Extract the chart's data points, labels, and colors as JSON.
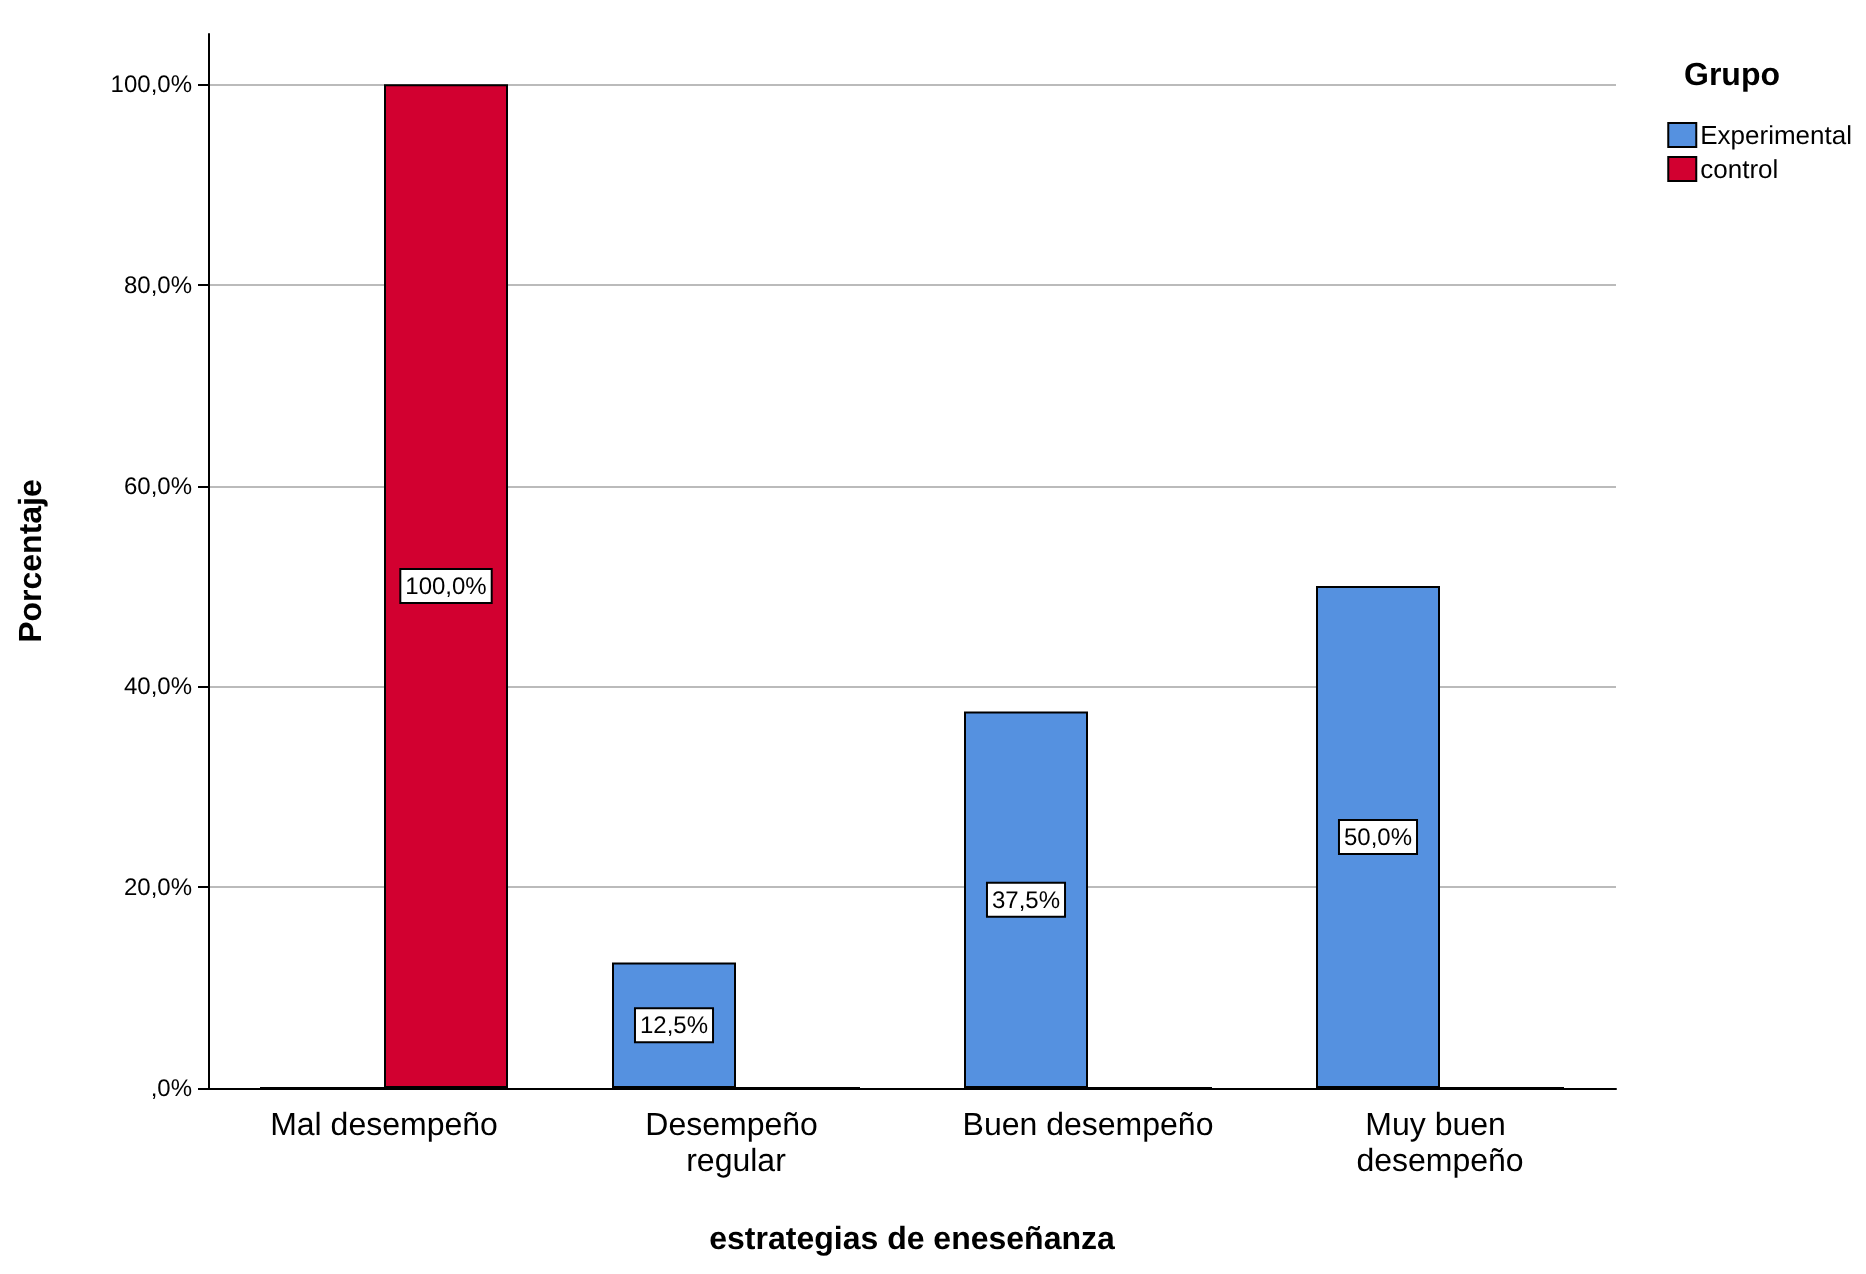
{
  "chart_data": {
    "type": "bar",
    "xlabel": "estrategias de eneseñanza",
    "ylabel": "Porcentaje",
    "legend_title": "Grupo",
    "categories": [
      "Mal desempeño",
      "Desempeño regular",
      "Buen desempeño",
      "Muy buen desempeño"
    ],
    "series": [
      {
        "name": "Experimental",
        "color": "#5591e0",
        "values": [
          0,
          12.5,
          37.5,
          50
        ],
        "value_labels": [
          null,
          "12,5%",
          "37,5%",
          "50,0%"
        ]
      },
      {
        "name": "control",
        "color": "#d20030",
        "values": [
          100,
          0,
          0,
          0
        ],
        "value_labels": [
          "100,0%",
          null,
          null,
          null
        ]
      }
    ],
    "ylim": [
      0,
      105
    ],
    "yticks": [
      {
        "value": 0,
        "label": ",0%"
      },
      {
        "value": 20,
        "label": "20,0%"
      },
      {
        "value": 40,
        "label": "40,0%"
      },
      {
        "value": 60,
        "label": "60,0%"
      },
      {
        "value": 80,
        "label": "80,0%"
      },
      {
        "value": 100,
        "label": "100,0%"
      }
    ],
    "grid": "y",
    "legend": "top right"
  }
}
